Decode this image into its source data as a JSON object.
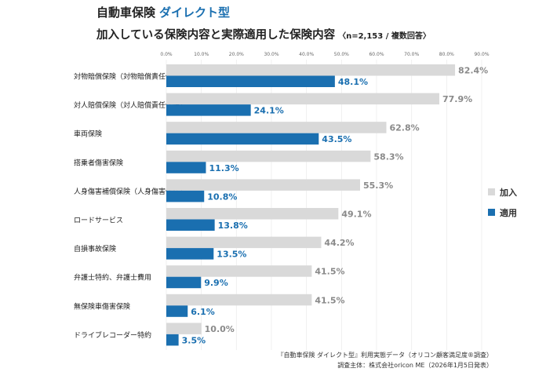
{
  "chart_data": {
    "type": "bar",
    "orientation": "horizontal",
    "title": "自動車保険",
    "title_accent": "ダイレクト型",
    "subtitle": "加入している保険内容と実際適用した保険内容",
    "subtitle_note": "〈n=2,153 / 複数回答〉",
    "xlim": [
      0,
      90
    ],
    "ticks": [
      "0.0%",
      "10.0%",
      "20.0%",
      "30.0%",
      "40.0%",
      "50.0%",
      "60.0%",
      "70.0%",
      "80.0%",
      "90.0%"
    ],
    "grid": true,
    "legend_position": "right",
    "categories": [
      "対物賠償保険（対物賠償責任保険）",
      "対人賠償保険（対人賠償責任保険）",
      "車両保険",
      "搭乗者傷害保険",
      "人身傷害補償保険（人身傷害保険）",
      "ロードサービス",
      "自損事故保険",
      "弁護士特約、弁護士費用",
      "無保険車傷害保険",
      "ドライブレコーダー特約"
    ],
    "series": [
      {
        "name": "加入",
        "color": "#d9d9d9",
        "label_color": "#8a8a8a",
        "values": [
          82.4,
          77.9,
          62.8,
          58.3,
          55.3,
          49.1,
          44.2,
          41.5,
          41.5,
          10.0
        ]
      },
      {
        "name": "適用",
        "color": "#1a6fb0",
        "label_color": "#1a6fb0",
        "values": [
          48.1,
          24.1,
          43.5,
          11.3,
          10.8,
          13.8,
          13.5,
          9.9,
          6.1,
          3.5
        ]
      }
    ],
    "source": "『自動車保険 ダイレクト型』利用実態データ（オリコン顧客満足度®調査）",
    "publisher": "調査主体：株式会社oricon ME（2026年1月5日発表）"
  }
}
